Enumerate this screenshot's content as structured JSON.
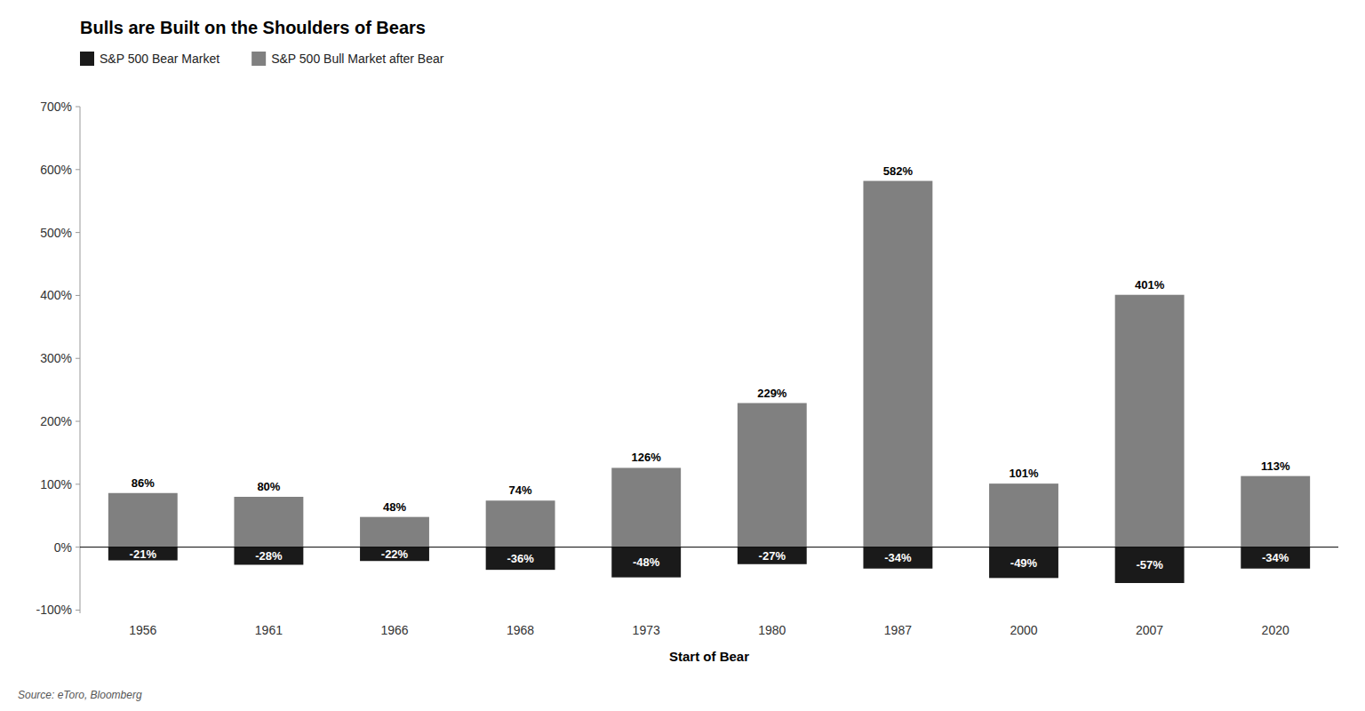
{
  "chart_data": {
    "type": "bar",
    "title": "Bulls are Built on the Shoulders of Bears",
    "x_label": "Start of Bear",
    "source": "Source: eToro, Bloomberg",
    "categories": [
      "1956",
      "1961",
      "1966",
      "1968",
      "1973",
      "1980",
      "1987",
      "2000",
      "2007",
      "2020"
    ],
    "series": [
      {
        "name": "S&P 500 Bear Market",
        "color": "#1a1a1a",
        "values": [
          -21,
          -28,
          -22,
          -36,
          -48,
          -27,
          -34,
          -49,
          -57,
          -34
        ],
        "value_labels": [
          "-21%",
          "-28%",
          "-22%",
          "-36%",
          "-48%",
          "-27%",
          "-34%",
          "-49%",
          "-57%",
          "-34%"
        ]
      },
      {
        "name": "S&P 500 Bull Market after Bear",
        "color": "#808080",
        "values": [
          86,
          80,
          48,
          74,
          126,
          229,
          582,
          101,
          401,
          113
        ],
        "value_labels": [
          "86%",
          "80%",
          "48%",
          "74%",
          "126%",
          "229%",
          "582%",
          "101%",
          "401%",
          "113%"
        ]
      }
    ],
    "ylim": [
      -105,
      700
    ],
    "yticks": [
      {
        "value": -100,
        "label": "-100%"
      },
      {
        "value": 0,
        "label": "0%"
      },
      {
        "value": 100,
        "label": "100%"
      },
      {
        "value": 200,
        "label": "200%"
      },
      {
        "value": 300,
        "label": "300%"
      },
      {
        "value": 400,
        "label": "400%"
      },
      {
        "value": 500,
        "label": "500%"
      },
      {
        "value": 600,
        "label": "600%"
      },
      {
        "value": 700,
        "label": "700%"
      }
    ],
    "grid": false,
    "legend": "top-left",
    "data_labels": true
  }
}
